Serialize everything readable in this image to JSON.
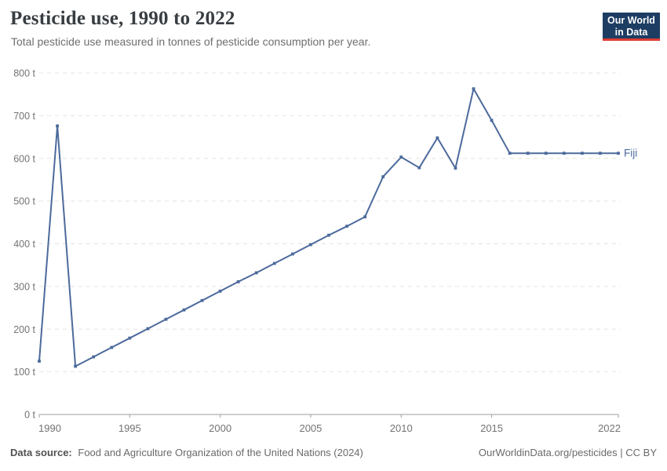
{
  "header": {
    "logo": {
      "line1": "Our World",
      "line2": "in Data",
      "bg_color": "#1d3d63",
      "accent_color": "#dc3d33"
    }
  },
  "chart_data": {
    "type": "line",
    "title": "Pesticide use, 1990 to 2022",
    "subtitle": "Total pesticide use measured in tonnes of pesticide consumption per year.",
    "unit": "t",
    "x": [
      1990,
      1991,
      1992,
      1993,
      1994,
      1995,
      1996,
      1997,
      1998,
      1999,
      2000,
      2001,
      2002,
      2003,
      2004,
      2005,
      2006,
      2007,
      2008,
      2009,
      2010,
      2011,
      2012,
      2013,
      2014,
      2015,
      2016,
      2017,
      2018,
      2019,
      2020,
      2021,
      2022
    ],
    "series": [
      {
        "name": "Fiji",
        "color": "#4c6a9c",
        "values": [
          125,
          676,
          113,
          135,
          157,
          179,
          201,
          223,
          245,
          267,
          289,
          311,
          332,
          354,
          376,
          398,
          420,
          441,
          463,
          557,
          603,
          578,
          648,
          577,
          763,
          689,
          612,
          612,
          612,
          612,
          612,
          612,
          612
        ]
      }
    ],
    "x_ticks": [
      1990,
      1995,
      2000,
      2005,
      2010,
      2015,
      2022
    ],
    "y_ticks": [
      0,
      100,
      200,
      300,
      400,
      500,
      600,
      700,
      800
    ],
    "y_tick_suffix": " t",
    "xlim": [
      1990,
      2022
    ],
    "ylim": [
      0,
      800
    ],
    "grid": "horizontal-dashed",
    "legend_position": "end-of-line",
    "colors": {
      "gridline": "#e4e4e4",
      "axis_line": "#9e9e9e",
      "tick_label": "#737373"
    }
  },
  "footer": {
    "datasource_label": "Data source:",
    "datasource_text": "Food and Agriculture Organization of the United Nations (2024)",
    "credit": "OurWorldinData.org/pesticides | CC BY"
  }
}
